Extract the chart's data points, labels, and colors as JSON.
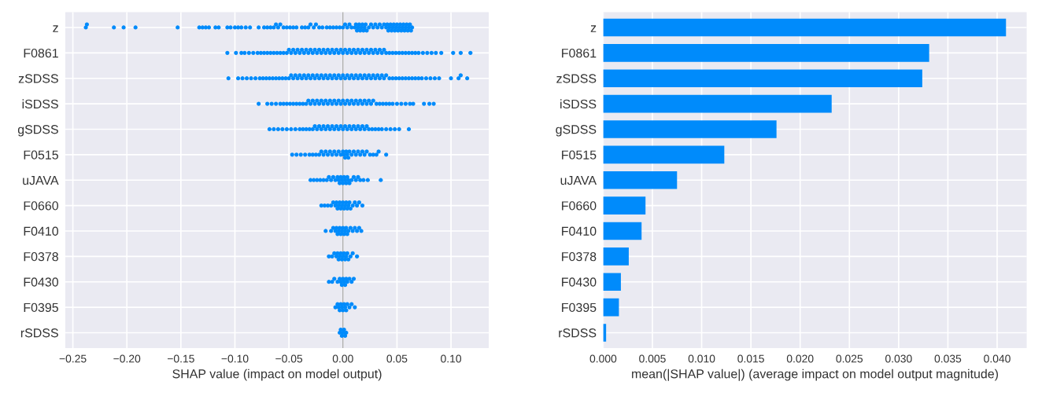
{
  "chart_data": [
    {
      "type": "scatter",
      "orientation": "horizontal",
      "xlabel": "SHAP value (impact on model output)",
      "grid": true,
      "marker": "circle",
      "categories": [
        "z",
        "F0861",
        "zSDSS",
        "iSDSS",
        "gSDSS",
        "F0515",
        "uJAVA",
        "F0660",
        "F0410",
        "F0378",
        "F0430",
        "F0395",
        "rSDSS"
      ],
      "series": [
        {
          "color": "#008bfb",
          "x": [
            "z",
            "z",
            "z",
            "z",
            "z",
            "z",
            "z",
            "z",
            "z",
            "z",
            "z",
            "z",
            "z",
            "z",
            "z",
            "z",
            "z",
            "z",
            "z",
            "z",
            "z",
            "z",
            "z",
            "z",
            "z",
            "z",
            "z",
            "z",
            "z",
            "z",
            "z",
            "z",
            "z",
            "z",
            "z",
            "z",
            "z",
            "z",
            "z",
            "z",
            "z",
            "z",
            "z",
            "z",
            "z",
            "z",
            "z",
            "z",
            "z",
            "z",
            "z",
            "z",
            "z",
            "z",
            "z",
            "z",
            "z",
            "z",
            "z",
            "z",
            "z",
            "z",
            "z",
            "z",
            "z",
            "z",
            "z",
            "z",
            "z",
            "z",
            "z",
            "z",
            "z",
            "z",
            "z",
            "z",
            "z",
            "z",
            "z",
            "z",
            "z",
            "z",
            "z",
            "z",
            "z",
            "z",
            "z",
            "z",
            "z",
            "z",
            "z",
            "z",
            "z",
            "z",
            "z"
          ],
          "values": [
            -0.238,
            -0.237,
            -0.212,
            -0.203,
            -0.192,
            -0.153,
            -0.133,
            -0.13,
            -0.127,
            -0.124,
            -0.118,
            -0.115,
            -0.107,
            -0.104,
            -0.1,
            -0.097,
            -0.094,
            -0.09,
            -0.086,
            -0.078,
            -0.073,
            -0.07,
            -0.067,
            -0.064,
            -0.062,
            -0.06,
            -0.058,
            -0.055,
            -0.052,
            -0.049,
            -0.046,
            -0.043,
            -0.038,
            -0.035,
            -0.032,
            -0.03,
            -0.027,
            -0.025,
            -0.022,
            -0.019,
            -0.015,
            -0.012,
            -0.009,
            -0.006,
            -0.003,
            0.0,
            0.002,
            0.004,
            0.006,
            0.008,
            0.011,
            0.012,
            0.013,
            0.014,
            0.015,
            0.016,
            0.017,
            0.018,
            0.019,
            0.02,
            0.021,
            0.022,
            0.024,
            0.026,
            0.028,
            0.03,
            0.032,
            0.034,
            0.036,
            0.038,
            0.04,
            0.041,
            0.042,
            0.043,
            0.044,
            0.045,
            0.046,
            0.047,
            0.048,
            0.049,
            0.05,
            0.051,
            0.052,
            0.053,
            0.054,
            0.055,
            0.056,
            0.057,
            0.058,
            0.059,
            0.06,
            0.061,
            0.062,
            0.063,
            0.064
          ]
        },
        {
          "color": "#008bfb",
          "x": [
            "F0861",
            "F0861",
            "F0861",
            "F0861",
            "F0861",
            "F0861",
            "F0861",
            "F0861",
            "F0861",
            "F0861",
            "F0861",
            "F0861",
            "F0861",
            "F0861",
            "F0861",
            "F0861",
            "F0861",
            "F0861",
            "F0861",
            "F0861",
            "F0861",
            "F0861",
            "F0861",
            "F0861",
            "F0861",
            "F0861",
            "F0861",
            "F0861",
            "F0861",
            "F0861",
            "F0861",
            "F0861",
            "F0861",
            "F0861",
            "F0861",
            "F0861",
            "F0861",
            "F0861",
            "F0861",
            "F0861",
            "F0861",
            "F0861",
            "F0861",
            "F0861",
            "F0861",
            "F0861",
            "F0861",
            "F0861",
            "F0861",
            "F0861",
            "F0861",
            "F0861",
            "F0861",
            "F0861",
            "F0861",
            "F0861",
            "F0861",
            "F0861",
            "F0861",
            "F0861",
            "F0861",
            "F0861",
            "F0861",
            "F0861",
            "F0861",
            "F0861",
            "F0861",
            "F0861",
            "F0861",
            "F0861",
            "F0861",
            "F0861",
            "F0861",
            "F0861",
            "F0861",
            "F0861",
            "F0861",
            "F0861",
            "F0861",
            "F0861"
          ],
          "values": [
            -0.107,
            -0.099,
            -0.094,
            -0.091,
            -0.087,
            -0.083,
            -0.079,
            -0.076,
            -0.073,
            -0.07,
            -0.067,
            -0.064,
            -0.061,
            -0.058,
            -0.055,
            -0.052,
            -0.05,
            -0.048,
            -0.046,
            -0.044,
            -0.042,
            -0.04,
            -0.038,
            -0.036,
            -0.034,
            -0.032,
            -0.03,
            -0.028,
            -0.026,
            -0.024,
            -0.022,
            -0.02,
            -0.018,
            -0.016,
            -0.014,
            -0.012,
            -0.01,
            -0.008,
            -0.006,
            -0.004,
            -0.002,
            0.0,
            0.002,
            0.004,
            0.006,
            0.008,
            0.01,
            0.012,
            0.014,
            0.016,
            0.018,
            0.02,
            0.022,
            0.024,
            0.026,
            0.028,
            0.03,
            0.032,
            0.034,
            0.036,
            0.038,
            0.04,
            0.043,
            0.046,
            0.049,
            0.052,
            0.055,
            0.058,
            0.061,
            0.064,
            0.067,
            0.07,
            0.074,
            0.078,
            0.082,
            0.086,
            0.091,
            0.102,
            0.109,
            0.118
          ]
        },
        {
          "color": "#008bfb",
          "x": [
            "zSDSS",
            "zSDSS",
            "zSDSS",
            "zSDSS",
            "zSDSS",
            "zSDSS",
            "zSDSS",
            "zSDSS",
            "zSDSS",
            "zSDSS",
            "zSDSS",
            "zSDSS",
            "zSDSS",
            "zSDSS",
            "zSDSS",
            "zSDSS",
            "zSDSS",
            "zSDSS",
            "zSDSS",
            "zSDSS",
            "zSDSS",
            "zSDSS",
            "zSDSS",
            "zSDSS",
            "zSDSS",
            "zSDSS",
            "zSDSS",
            "zSDSS",
            "zSDSS",
            "zSDSS",
            "zSDSS",
            "zSDSS",
            "zSDSS",
            "zSDSS",
            "zSDSS",
            "zSDSS",
            "zSDSS",
            "zSDSS",
            "zSDSS",
            "zSDSS",
            "zSDSS",
            "zSDSS",
            "zSDSS",
            "zSDSS",
            "zSDSS",
            "zSDSS",
            "zSDSS",
            "zSDSS",
            "zSDSS",
            "zSDSS",
            "zSDSS",
            "zSDSS",
            "zSDSS",
            "zSDSS",
            "zSDSS",
            "zSDSS",
            "zSDSS",
            "zSDSS",
            "zSDSS",
            "zSDSS",
            "zSDSS",
            "zSDSS",
            "zSDSS",
            "zSDSS",
            "zSDSS",
            "zSDSS",
            "zSDSS",
            "zSDSS",
            "zSDSS",
            "zSDSS",
            "zSDSS",
            "zSDSS",
            "zSDSS",
            "zSDSS",
            "zSDSS",
            "zSDSS",
            "zSDSS",
            "zSDSS",
            "zSDSS",
            "zSDSS"
          ],
          "values": [
            -0.106,
            -0.097,
            -0.093,
            -0.089,
            -0.085,
            -0.081,
            -0.077,
            -0.074,
            -0.071,
            -0.068,
            -0.065,
            -0.062,
            -0.059,
            -0.056,
            -0.053,
            -0.05,
            -0.048,
            -0.046,
            -0.044,
            -0.042,
            -0.04,
            -0.038,
            -0.036,
            -0.034,
            -0.032,
            -0.03,
            -0.028,
            -0.026,
            -0.024,
            -0.022,
            -0.02,
            -0.018,
            -0.016,
            -0.014,
            -0.012,
            -0.01,
            -0.008,
            -0.006,
            -0.004,
            -0.002,
            0.0,
            0.002,
            0.004,
            0.006,
            0.008,
            0.01,
            0.012,
            0.014,
            0.016,
            0.018,
            0.02,
            0.022,
            0.024,
            0.026,
            0.028,
            0.03,
            0.032,
            0.034,
            0.036,
            0.038,
            0.04,
            0.043,
            0.046,
            0.049,
            0.052,
            0.055,
            0.058,
            0.061,
            0.064,
            0.067,
            0.07,
            0.073,
            0.077,
            0.081,
            0.085,
            0.089,
            0.1,
            0.107,
            0.109,
            0.115
          ]
        },
        {
          "color": "#008bfb",
          "x": [
            "iSDSS",
            "iSDSS",
            "iSDSS",
            "iSDSS",
            "iSDSS",
            "iSDSS",
            "iSDSS",
            "iSDSS",
            "iSDSS",
            "iSDSS",
            "iSDSS",
            "iSDSS",
            "iSDSS",
            "iSDSS",
            "iSDSS",
            "iSDSS",
            "iSDSS",
            "iSDSS",
            "iSDSS",
            "iSDSS",
            "iSDSS",
            "iSDSS",
            "iSDSS",
            "iSDSS",
            "iSDSS",
            "iSDSS",
            "iSDSS",
            "iSDSS",
            "iSDSS",
            "iSDSS",
            "iSDSS",
            "iSDSS",
            "iSDSS",
            "iSDSS",
            "iSDSS",
            "iSDSS",
            "iSDSS",
            "iSDSS",
            "iSDSS",
            "iSDSS",
            "iSDSS",
            "iSDSS",
            "iSDSS",
            "iSDSS",
            "iSDSS",
            "iSDSS",
            "iSDSS",
            "iSDSS",
            "iSDSS",
            "iSDSS",
            "iSDSS",
            "iSDSS",
            "iSDSS",
            "iSDSS",
            "iSDSS",
            "iSDSS",
            "iSDSS",
            "iSDSS"
          ],
          "values": [
            -0.078,
            -0.07,
            -0.066,
            -0.062,
            -0.058,
            -0.055,
            -0.052,
            -0.049,
            -0.046,
            -0.043,
            -0.04,
            -0.037,
            -0.034,
            -0.032,
            -0.03,
            -0.028,
            -0.026,
            -0.024,
            -0.022,
            -0.02,
            -0.018,
            -0.016,
            -0.014,
            -0.012,
            -0.01,
            -0.008,
            -0.006,
            -0.004,
            -0.002,
            0.0,
            0.002,
            0.004,
            0.006,
            0.008,
            0.01,
            0.012,
            0.014,
            0.016,
            0.018,
            0.02,
            0.022,
            0.024,
            0.026,
            0.028,
            0.031,
            0.034,
            0.037,
            0.04,
            0.043,
            0.046,
            0.05,
            0.054,
            0.058,
            0.062,
            0.065,
            0.075,
            0.08,
            0.084
          ]
        },
        {
          "color": "#008bfb",
          "x": [
            "gSDSS",
            "gSDSS",
            "gSDSS",
            "gSDSS",
            "gSDSS",
            "gSDSS",
            "gSDSS",
            "gSDSS",
            "gSDSS",
            "gSDSS",
            "gSDSS",
            "gSDSS",
            "gSDSS",
            "gSDSS",
            "gSDSS",
            "gSDSS",
            "gSDSS",
            "gSDSS",
            "gSDSS",
            "gSDSS",
            "gSDSS",
            "gSDSS",
            "gSDSS",
            "gSDSS",
            "gSDSS",
            "gSDSS",
            "gSDSS",
            "gSDSS",
            "gSDSS",
            "gSDSS",
            "gSDSS",
            "gSDSS",
            "gSDSS",
            "gSDSS",
            "gSDSS",
            "gSDSS",
            "gSDSS",
            "gSDSS",
            "gSDSS",
            "gSDSS",
            "gSDSS",
            "gSDSS",
            "gSDSS",
            "gSDSS",
            "gSDSS",
            "gSDSS",
            "gSDSS"
          ],
          "values": [
            -0.068,
            -0.064,
            -0.06,
            -0.056,
            -0.052,
            -0.048,
            -0.044,
            -0.04,
            -0.037,
            -0.034,
            -0.031,
            -0.028,
            -0.026,
            -0.024,
            -0.022,
            -0.02,
            -0.018,
            -0.016,
            -0.014,
            -0.012,
            -0.01,
            -0.008,
            -0.006,
            -0.004,
            -0.002,
            0.0,
            0.002,
            0.004,
            0.006,
            0.008,
            0.01,
            0.012,
            0.014,
            0.016,
            0.018,
            0.02,
            0.022,
            0.024,
            0.027,
            0.03,
            0.033,
            0.036,
            0.04,
            0.044,
            0.048,
            0.052,
            0.061
          ]
        },
        {
          "color": "#008bfb",
          "x": [
            "F0515",
            "F0515",
            "F0515",
            "F0515",
            "F0515",
            "F0515",
            "F0515",
            "F0515",
            "F0515",
            "F0515",
            "F0515",
            "F0515",
            "F0515",
            "F0515",
            "F0515",
            "F0515",
            "F0515",
            "F0515",
            "F0515",
            "F0515",
            "F0515",
            "F0515",
            "F0515",
            "F0515",
            "F0515",
            "F0515",
            "F0515",
            "F0515",
            "F0515",
            "F0515",
            "F0515",
            "F0515",
            "F0515",
            "F0515",
            "F0515",
            "F0515",
            "F0515",
            "F0515"
          ],
          "values": [
            -0.047,
            -0.043,
            -0.039,
            -0.035,
            -0.031,
            -0.028,
            -0.025,
            -0.022,
            -0.02,
            -0.018,
            -0.016,
            -0.014,
            -0.012,
            -0.01,
            -0.008,
            -0.006,
            -0.004,
            -0.002,
            0.0,
            0.001,
            0.002,
            0.003,
            0.004,
            0.005,
            0.006,
            0.008,
            0.01,
            0.012,
            0.014,
            0.016,
            0.018,
            0.02,
            0.022,
            0.025,
            0.028,
            0.031,
            0.033,
            0.04
          ]
        },
        {
          "color": "#008bfb",
          "x": [
            "uJAVA",
            "uJAVA",
            "uJAVA",
            "uJAVA",
            "uJAVA",
            "uJAVA",
            "uJAVA",
            "uJAVA",
            "uJAVA",
            "uJAVA",
            "uJAVA",
            "uJAVA",
            "uJAVA",
            "uJAVA",
            "uJAVA",
            "uJAVA",
            "uJAVA",
            "uJAVA",
            "uJAVA",
            "uJAVA",
            "uJAVA",
            "uJAVA",
            "uJAVA",
            "uJAVA",
            "uJAVA",
            "uJAVA",
            "uJAVA",
            "uJAVA",
            "uJAVA",
            "uJAVA"
          ],
          "values": [
            -0.03,
            -0.027,
            -0.024,
            -0.021,
            -0.018,
            -0.015,
            -0.013,
            -0.011,
            -0.009,
            -0.007,
            -0.005,
            -0.004,
            -0.003,
            -0.002,
            -0.001,
            0.0,
            0.001,
            0.002,
            0.003,
            0.004,
            0.005,
            0.006,
            0.008,
            0.01,
            0.012,
            0.014,
            0.016,
            0.019,
            0.023,
            0.035
          ]
        },
        {
          "color": "#008bfb",
          "x": [
            "F0660",
            "F0660",
            "F0660",
            "F0660",
            "F0660",
            "F0660",
            "F0660",
            "F0660",
            "F0660",
            "F0660",
            "F0660",
            "F0660",
            "F0660",
            "F0660",
            "F0660",
            "F0660",
            "F0660",
            "F0660",
            "F0660",
            "F0660",
            "F0660",
            "F0660",
            "F0660",
            "F0660",
            "F0660"
          ],
          "values": [
            -0.02,
            -0.017,
            -0.014,
            -0.011,
            -0.009,
            -0.007,
            -0.006,
            -0.005,
            -0.004,
            -0.003,
            -0.002,
            -0.001,
            0.0,
            0.001,
            0.002,
            0.003,
            0.004,
            0.005,
            0.006,
            0.007,
            0.009,
            0.011,
            0.013,
            0.015,
            0.018
          ]
        },
        {
          "color": "#008bfb",
          "x": [
            "F0410",
            "F0410",
            "F0410",
            "F0410",
            "F0410",
            "F0410",
            "F0410",
            "F0410",
            "F0410",
            "F0410",
            "F0410",
            "F0410",
            "F0410",
            "F0410",
            "F0410",
            "F0410",
            "F0410",
            "F0410",
            "F0410",
            "F0410",
            "F0410",
            "F0410"
          ],
          "values": [
            -0.016,
            -0.011,
            -0.009,
            -0.007,
            -0.006,
            -0.005,
            -0.004,
            -0.003,
            -0.002,
            -0.001,
            0.0,
            0.001,
            0.002,
            0.003,
            0.004,
            0.005,
            0.007,
            0.009,
            0.011,
            0.013,
            0.015,
            0.017
          ]
        },
        {
          "color": "#008bfb",
          "x": [
            "F0378",
            "F0378",
            "F0378",
            "F0378",
            "F0378",
            "F0378",
            "F0378",
            "F0378",
            "F0378",
            "F0378",
            "F0378",
            "F0378",
            "F0378",
            "F0378",
            "F0378",
            "F0378",
            "F0378",
            "F0378"
          ],
          "values": [
            -0.013,
            -0.01,
            -0.008,
            -0.006,
            -0.005,
            -0.004,
            -0.003,
            -0.002,
            -0.001,
            0.0,
            0.001,
            0.002,
            0.003,
            0.004,
            0.005,
            0.007,
            0.009,
            0.013
          ]
        },
        {
          "color": "#008bfb",
          "x": [
            "F0430",
            "F0430",
            "F0430",
            "F0430",
            "F0430",
            "F0430",
            "F0430",
            "F0430",
            "F0430",
            "F0430",
            "F0430",
            "F0430",
            "F0430",
            "F0430",
            "F0430"
          ],
          "values": [
            -0.013,
            -0.01,
            -0.008,
            -0.005,
            -0.003,
            -0.002,
            -0.001,
            0.0,
            0.001,
            0.002,
            0.003,
            0.004,
            0.006,
            0.008,
            0.01
          ]
        },
        {
          "color": "#008bfb",
          "x": [
            "F0395",
            "F0395",
            "F0395",
            "F0395",
            "F0395",
            "F0395",
            "F0395",
            "F0395",
            "F0395",
            "F0395",
            "F0395",
            "F0395",
            "F0395",
            "F0395"
          ],
          "values": [
            -0.007,
            -0.005,
            -0.004,
            -0.003,
            -0.002,
            -0.001,
            0.0,
            0.001,
            0.002,
            0.003,
            0.004,
            0.006,
            0.008,
            0.011
          ]
        },
        {
          "color": "#008bfb",
          "x": [
            "rSDSS",
            "rSDSS",
            "rSDSS",
            "rSDSS",
            "rSDSS",
            "rSDSS",
            "rSDSS"
          ],
          "values": [
            -0.003,
            -0.002,
            -0.001,
            0.0,
            0.001,
            0.002,
            0.003
          ]
        }
      ],
      "xlim": [
        -0.257,
        0.135
      ],
      "xticks": [
        {
          "value": -0.25,
          "label": "−0.25"
        },
        {
          "value": -0.2,
          "label": "−0.20"
        },
        {
          "value": -0.15,
          "label": "−0.15"
        },
        {
          "value": -0.1,
          "label": "−0.10"
        },
        {
          "value": -0.05,
          "label": "−0.05"
        },
        {
          "value": 0,
          "label": "0.00"
        },
        {
          "value": 0.05,
          "label": "0.05"
        },
        {
          "value": 0.1,
          "label": "0.10"
        }
      ],
      "ref_lines": [
        {
          "axis": "x",
          "value": 0,
          "color": "#999999"
        }
      ]
    },
    {
      "type": "bar",
      "orientation": "horizontal",
      "xlabel": "mean(|SHAP value|) (average impact on model output magnitude)",
      "color": "#008bfb",
      "grid": true,
      "categories": [
        "z",
        "F0861",
        "zSDSS",
        "iSDSS",
        "gSDSS",
        "F0515",
        "uJAVA",
        "F0660",
        "F0410",
        "F0378",
        "F0430",
        "F0395",
        "rSDSS"
      ],
      "values": [
        0.0409,
        0.0331,
        0.0324,
        0.0232,
        0.0176,
        0.0123,
        0.0075,
        0.0043,
        0.0039,
        0.0026,
        0.0018,
        0.0016,
        0.0003
      ],
      "xlim": [
        0,
        0.043
      ],
      "xticks": [
        {
          "value": 0,
          "label": "0.000"
        },
        {
          "value": 0.005,
          "label": "0.005"
        },
        {
          "value": 0.01,
          "label": "0.010"
        },
        {
          "value": 0.015,
          "label": "0.015"
        },
        {
          "value": 0.02,
          "label": "0.020"
        },
        {
          "value": 0.025,
          "label": "0.025"
        },
        {
          "value": 0.03,
          "label": "0.030"
        },
        {
          "value": 0.035,
          "label": "0.035"
        },
        {
          "value": 0.04,
          "label": "0.040"
        }
      ]
    }
  ]
}
